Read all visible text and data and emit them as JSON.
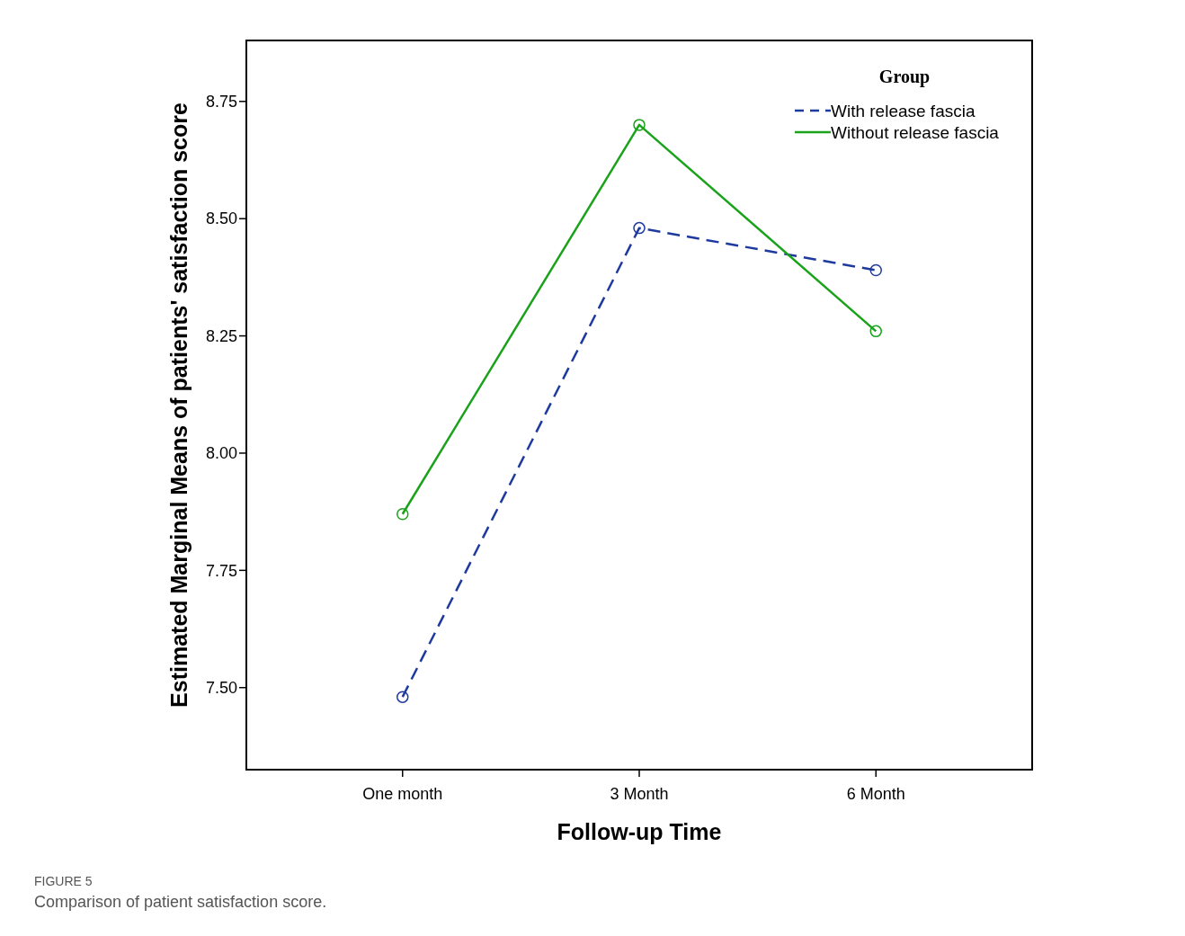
{
  "chart_data": {
    "type": "line",
    "xlabel": "Follow-up Time",
    "ylabel": "Estimated Marginal Means of patients' satisfaction score",
    "legend_title": "Group",
    "categories": [
      "One month",
      "3 Month",
      "6 Month"
    ],
    "series": [
      {
        "name": "With release fascia",
        "color": "#1f3a9e",
        "line_style": "dashed",
        "values": [
          7.48,
          8.48,
          8.39
        ]
      },
      {
        "name": "Without release fascia",
        "color": "#1aa31a",
        "line_style": "solid",
        "values": [
          7.87,
          8.7,
          8.26
        ]
      }
    ],
    "ylim": [
      7.325,
      8.88
    ],
    "yticks": [
      {
        "value": 7.5,
        "label": "7.50"
      },
      {
        "value": 7.75,
        "label": "7.75"
      },
      {
        "value": 8,
        "label": "8.00"
      },
      {
        "value": 8.25,
        "label": "8.25"
      },
      {
        "value": 8.5,
        "label": "8.50"
      },
      {
        "value": 8.75,
        "label": "8.75"
      }
    ],
    "marker": "circle",
    "legend": "top right",
    "grid": false,
    "annotations": [
      "FIGURE 5",
      "Comparison of patient satisfaction score."
    ]
  }
}
